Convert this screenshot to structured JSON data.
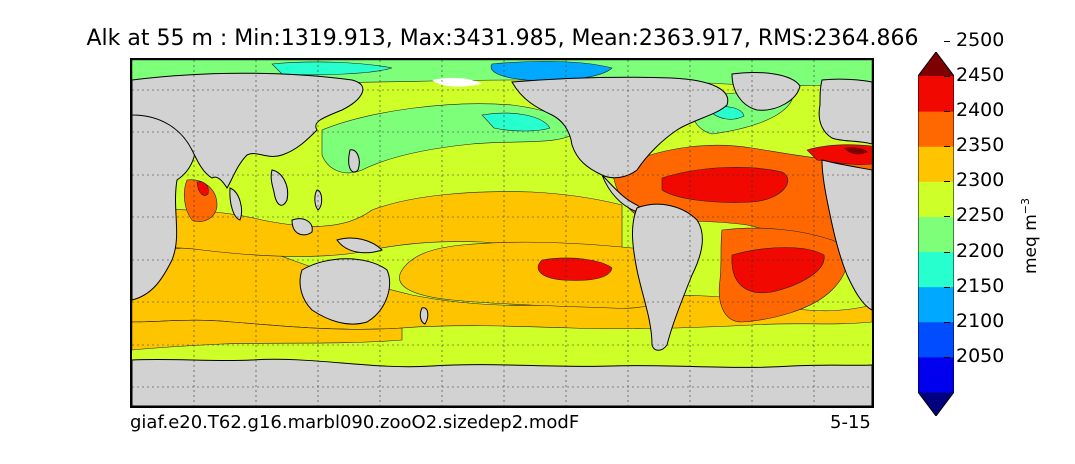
{
  "title": "Alk at 55 m : Min:1319.913, Max:3431.985, Mean:2363.917, RMS:2364.866",
  "case_name": "giaf.e20.T62.g16.marbl090.zooO2.sizedep2.modF",
  "period": "5-15",
  "colorbar": {
    "unit_base": "meq m",
    "unit_exp": "−3",
    "ticks": [
      "2050",
      "2100",
      "2150",
      "2200",
      "2250",
      "2300",
      "2350",
      "2400",
      "2450",
      "2500"
    ],
    "levels": [
      {
        "min": null,
        "max": 2050,
        "color": "#00007f"
      },
      {
        "min": 2050,
        "max": 2100,
        "color": "#0000ef"
      },
      {
        "min": 2100,
        "max": 2150,
        "color": "#004cff"
      },
      {
        "min": 2150,
        "max": 2200,
        "color": "#00a9ff"
      },
      {
        "min": 2200,
        "max": 2250,
        "color": "#27ffcf"
      },
      {
        "min": 2250,
        "max": 2300,
        "color": "#7dff7a"
      },
      {
        "min": 2300,
        "max": 2350,
        "color": "#ceff29"
      },
      {
        "min": 2350,
        "max": 2400,
        "color": "#ffc400"
      },
      {
        "min": 2400,
        "max": 2450,
        "color": "#ff6800"
      },
      {
        "min": 2450,
        "max": 2500,
        "color": "#f10800"
      },
      {
        "min": 2500,
        "max": null,
        "color": "#7f0000"
      }
    ]
  },
  "map": {
    "land_color": "#d2d2d2",
    "missing_color": "#ffffff",
    "gridlines": "dashed"
  }
}
